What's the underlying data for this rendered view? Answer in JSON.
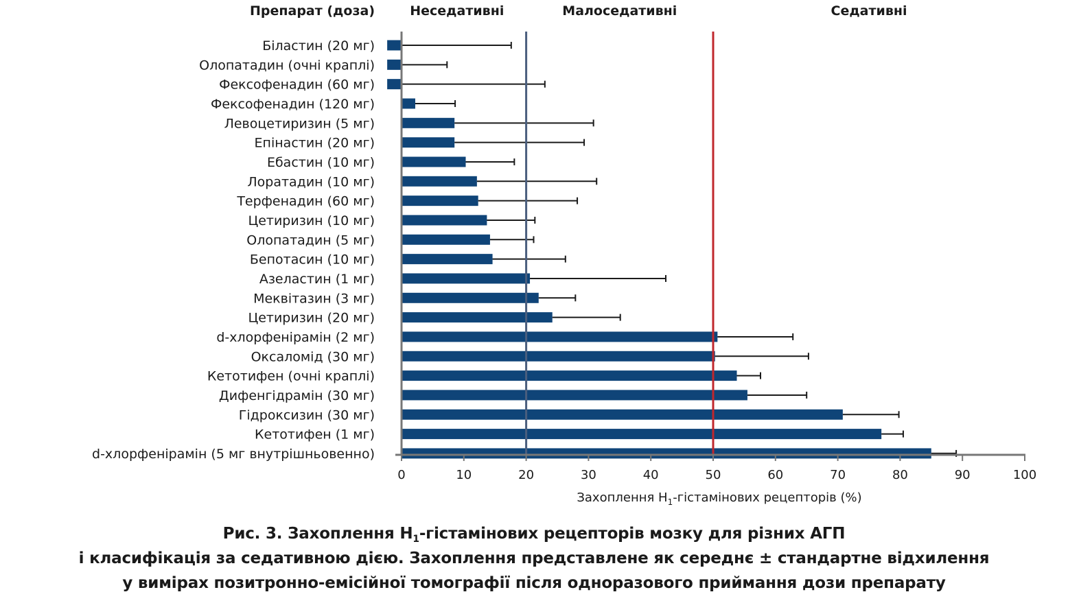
{
  "chart_data": {
    "type": "bar",
    "orientation": "horizontal",
    "column_header": "Препарат (доза)",
    "zones": [
      {
        "label": "Неседативні",
        "from": 0,
        "to": 20
      },
      {
        "label": "Малоседативні",
        "from": 20,
        "to": 50
      },
      {
        "label": "Седативні",
        "from": 50,
        "to": 100
      }
    ],
    "threshold_lines": [
      {
        "value": 20,
        "color": "#4a5e7e"
      },
      {
        "value": 50,
        "color": "#c0272d"
      }
    ],
    "xlabel": {
      "prefix": "Захоплення H",
      "sub": "1",
      "suffix": "-гістамінових рецепторів (%)"
    },
    "xlim": [
      0,
      100
    ],
    "xticks": [
      0,
      10,
      20,
      30,
      40,
      50,
      60,
      70,
      80,
      90,
      100
    ],
    "bar_color": "#0f4478",
    "series": [
      {
        "name": "Захоплення H1-гістамінових рецепторів (%)",
        "categories": [
          "Біластин (20 мг)",
          "Олопатадин (очні краплі)",
          "Фексофенадин (60 мг)",
          "Фексофенадин (120 мг)",
          "Левоцетиризин (5 мг)",
          "Епінастин (20 мг)",
          "Ебастин (10 мг)",
          "Лоратадин (10 мг)",
          "Терфенадин (60 мг)",
          "Цетиризин (10 мг)",
          "Олопатадин (5 мг)",
          "Бепотасин (10 мг)",
          "Азеластин (1 мг)",
          "Меквітазин (3 мг)",
          "Цетиризин (20 мг)",
          "d-хлорфенірамін (2 мг)",
          "Оксаломід (30 мг)",
          "Кетотифен (очні краплі)",
          "Дифенгідрамін (30 мг)",
          "Гідроксизин (30 мг)",
          "Кетотифен (1 мг)",
          "d-хлорфенірамін (5 мг внутрішньовенно)"
        ],
        "values": [
          -2.3,
          -2.3,
          -2.3,
          2.2,
          8.5,
          8.5,
          10.3,
          12.1,
          12.3,
          13.7,
          14.2,
          14.6,
          20.6,
          22.0,
          24.2,
          50.7,
          50.3,
          53.8,
          55.5,
          70.8,
          77.0,
          85.0
        ],
        "error_upper": [
          17.6,
          7.3,
          23.0,
          8.6,
          30.8,
          29.3,
          18.1,
          31.3,
          28.2,
          21.4,
          21.2,
          26.3,
          42.4,
          27.9,
          35.1,
          62.8,
          65.3,
          57.6,
          65.0,
          79.8,
          80.5,
          89.0
        ]
      }
    ]
  },
  "caption": {
    "line1_prefix": "Рис. 3. Захоплення H",
    "line1_sub": "1",
    "line1_suffix": "-гістамінових рецепторів мозку для різних АГП",
    "line2": "і класифікація за седативною дією. Захоплення представлене як середнє ± стандартне відхилення",
    "line3": "у вимірах позитронно-емісійної томографії після одноразового приймання дози препарату"
  }
}
